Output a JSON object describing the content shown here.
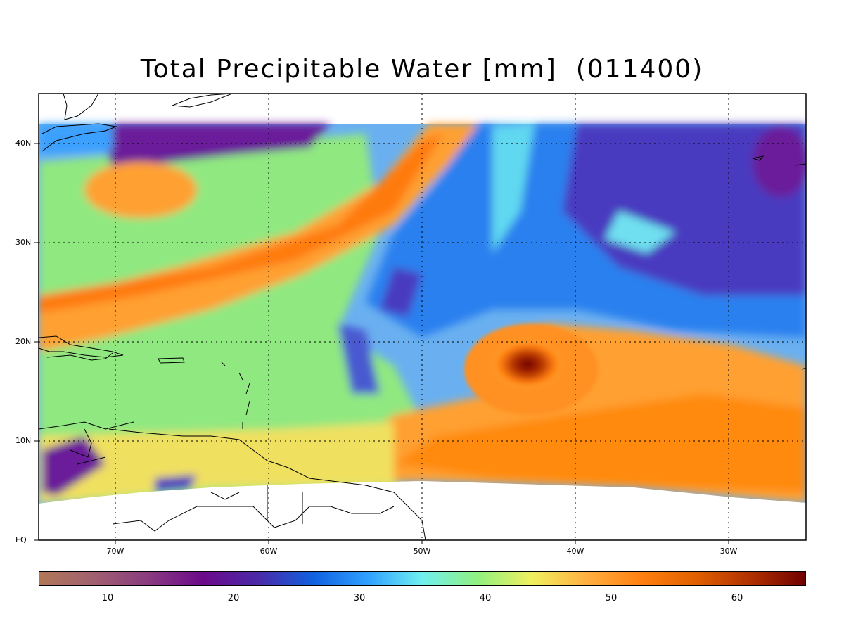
{
  "title": "Total Precipitable Water [mm]  (011400)",
  "map": {
    "lon_range": [
      -75,
      -25
    ],
    "lat_range": [
      0,
      45
    ],
    "grid": true,
    "lat_labels": [
      {
        "lat": 40,
        "text": "40N"
      },
      {
        "lat": 30,
        "text": "30N"
      },
      {
        "lat": 20,
        "text": "20N"
      },
      {
        "lat": 10,
        "text": "10N"
      },
      {
        "lat": 0,
        "text": "EQ"
      }
    ],
    "lon_labels": [
      {
        "lon": -70,
        "text": "70W"
      },
      {
        "lon": -60,
        "text": "60W"
      },
      {
        "lon": -50,
        "text": "50W"
      },
      {
        "lon": -40,
        "text": "40W"
      },
      {
        "lon": -30,
        "text": "30W"
      }
    ]
  },
  "colorbar": {
    "range": [
      5,
      66
    ],
    "ticks": [
      "10",
      "20",
      "30",
      "40",
      "50",
      "60"
    ],
    "colors": [
      "#b07858",
      "#a06070",
      "#8a3a80",
      "#6a0a8a",
      "#4a2aa8",
      "#1060e0",
      "#30a0ff",
      "#70f0f0",
      "#90f080",
      "#f0f060",
      "#ffb040",
      "#ff8010",
      "#e06000",
      "#b03000",
      "#700000"
    ]
  }
}
